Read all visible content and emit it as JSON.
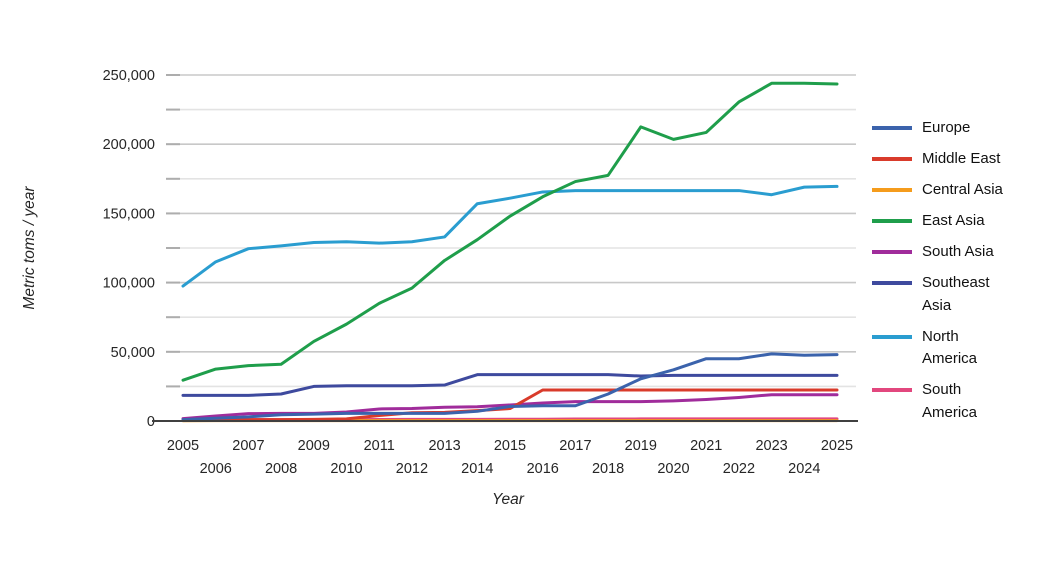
{
  "figure_title": "",
  "chart_data": {
    "type": "line",
    "title": "",
    "xlabel": "Year",
    "ylabel": "Metric toms / year",
    "x": [
      2005,
      2006,
      2007,
      2008,
      2009,
      2010,
      2011,
      2012,
      2013,
      2014,
      2015,
      2016,
      2017,
      2018,
      2019,
      2020,
      2021,
      2022,
      2023,
      2024,
      2025
    ],
    "ylim": [
      0,
      250000
    ],
    "y_major_step": 50000,
    "y_minor_step": 25000,
    "grid": true,
    "legend_position": "right",
    "y_tick_labels": [
      "0",
      "50,000",
      "100,000",
      "150,000",
      "200,000",
      "250,000"
    ],
    "x_tick_labels": [
      "2005",
      "2006",
      "2007",
      "2008",
      "2009",
      "2010",
      "2011",
      "2012",
      "2013",
      "2014",
      "2015",
      "2016",
      "2017",
      "2018",
      "2019",
      "2020",
      "2021",
      "2022",
      "2023",
      "2024",
      "2025"
    ],
    "series": [
      {
        "name": "Europe",
        "color": "#3B63AC",
        "legend_lines": [
          "Europe"
        ],
        "values": [
          1000,
          2000,
          3000,
          4500,
          5000,
          5500,
          5500,
          5500,
          5500,
          7000,
          10500,
          11000,
          11000,
          19500,
          30500,
          37000,
          45000,
          45000,
          48500,
          47500,
          48000
        ]
      },
      {
        "name": "Middle East",
        "color": "#D93B2B",
        "legend_lines": [
          "Middle East"
        ],
        "values": [
          500,
          800,
          1000,
          1000,
          1200,
          1500,
          4000,
          6000,
          6200,
          7500,
          9000,
          22400,
          22400,
          22400,
          22400,
          22400,
          22400,
          22400,
          22400,
          22400,
          22400
        ]
      },
      {
        "name": "Central Asia",
        "color": "#F59C1C",
        "legend_lines": [
          "Central Asia"
        ],
        "values": [
          200,
          250,
          300,
          300,
          300,
          300,
          300,
          300,
          300,
          300,
          300,
          300,
          300,
          300,
          300,
          300,
          300,
          300,
          300,
          300,
          300
        ]
      },
      {
        "name": "East Asia",
        "color": "#1F9E4B",
        "legend_lines": [
          "East Asia"
        ],
        "values": [
          29500,
          37500,
          40000,
          41000,
          57500,
          70000,
          85000,
          96000,
          116000,
          131000,
          148000,
          162000,
          173000,
          177500,
          212500,
          203500,
          208500,
          230500,
          244000,
          244000,
          243500
        ]
      },
      {
        "name": "South Asia",
        "color": "#A02C9B",
        "legend_lines": [
          "South Asia"
        ],
        "values": [
          1700,
          3600,
          5300,
          5500,
          5500,
          6500,
          8700,
          9000,
          9900,
          10300,
          11600,
          13000,
          14000,
          14000,
          14000,
          14500,
          15500,
          17000,
          19000,
          19000,
          19000
        ]
      },
      {
        "name": "Southeast Asia",
        "color": "#3E4A9E",
        "legend_lines": [
          "Southeast",
          "Asia"
        ],
        "values": [
          18500,
          18500,
          18500,
          19500,
          25000,
          25500,
          25500,
          25500,
          26000,
          33500,
          33500,
          33500,
          33500,
          33500,
          32500,
          33000,
          33000,
          33000,
          33000,
          33000,
          33000
        ]
      },
      {
        "name": "North America",
        "color": "#2A9DD0",
        "legend_lines": [
          "North",
          "America"
        ],
        "values": [
          97500,
          115000,
          124500,
          126500,
          129000,
          129500,
          128500,
          129500,
          133000,
          157000,
          161000,
          165500,
          166500,
          166500,
          166500,
          166500,
          166500,
          166500,
          163500,
          169000,
          169500
        ]
      },
      {
        "name": "South America",
        "color": "#E2477E",
        "legend_lines": [
          "South",
          "America"
        ],
        "values": [
          800,
          900,
          1000,
          1000,
          1000,
          1000,
          1100,
          1200,
          1200,
          1200,
          1300,
          1300,
          1400,
          1400,
          1500,
          1500,
          1500,
          1500,
          1500,
          1500,
          1500
        ]
      }
    ]
  },
  "style": {
    "grid_major_color": "#C8C8C8",
    "grid_minor_color": "#E3E3E3",
    "axis_line_color": "#404040",
    "tick_color": "#ADADAD",
    "label_color": "#262626"
  }
}
